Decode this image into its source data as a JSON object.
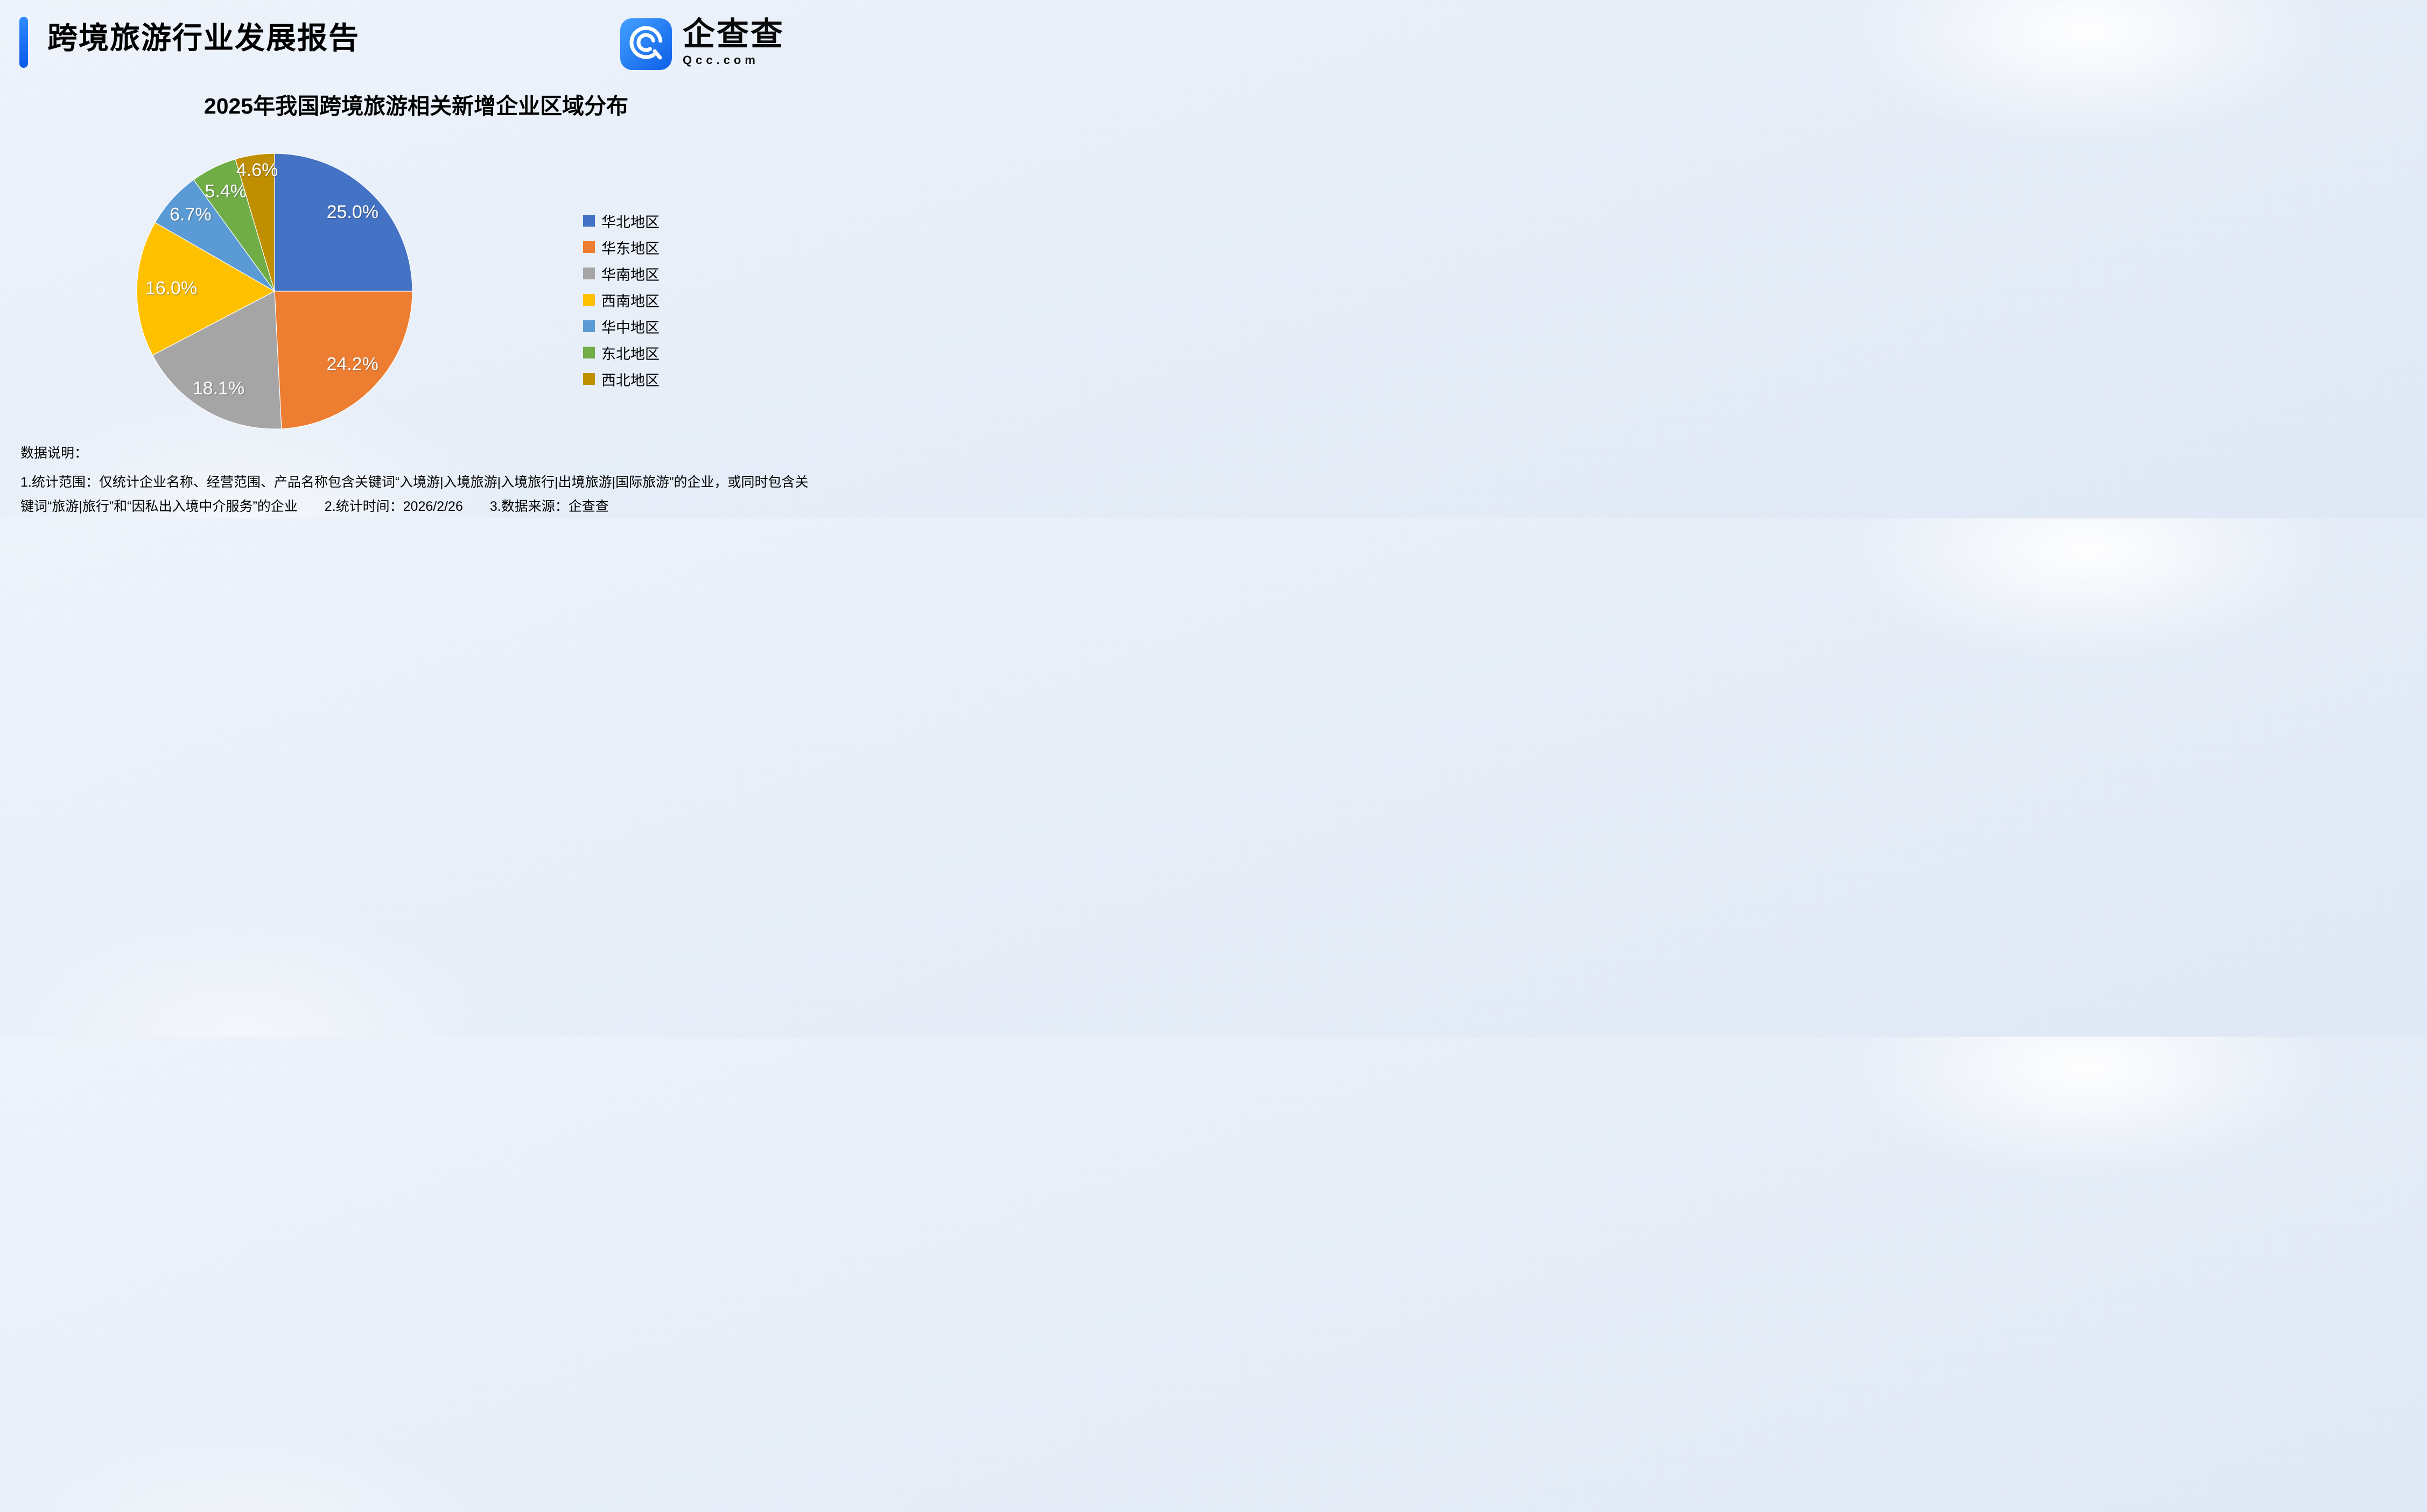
{
  "header": {
    "title": "跨境旅游行业发展报告",
    "brand": {
      "name": "企查查",
      "domain": "Qcc.com",
      "logo_color_top": "#43a0ff",
      "logo_color_bottom": "#0d5fe8"
    }
  },
  "chart_data": {
    "type": "pie",
    "title": "2025年我国跨境旅游相关新增企业区域分布",
    "unit": "%",
    "start_angle_deg": 0,
    "direction": "clockwise",
    "legend_position": "right",
    "value_label_color": "#ffffff",
    "slices": [
      {
        "label": "华北地区",
        "value": 25.0,
        "color": "#4472C4",
        "label_r": 0.8
      },
      {
        "label": "华东地区",
        "value": 24.2,
        "color": "#ED7D31",
        "label_r": 0.78
      },
      {
        "label": "华南地区",
        "value": 18.1,
        "color": "#A5A5A5",
        "label_r": 0.82
      },
      {
        "label": "西南地区",
        "value": 16.0,
        "color": "#FFC000",
        "label_r": 0.75
      },
      {
        "label": "华中地区",
        "value": 6.7,
        "color": "#5B9BD5",
        "label_r": 0.82
      },
      {
        "label": "东北地区",
        "value": 5.4,
        "color": "#70AD47",
        "label_r": 0.8
      },
      {
        "label": "西北地区",
        "value": 4.6,
        "color": "#BF8F00",
        "label_r": 0.88
      }
    ]
  },
  "footer": {
    "heading": "数据说明：",
    "note": "1.统计范围：仅统计企业名称、经营范围、产品名称包含关键词“入境游|入境旅游|入境旅行|出境旅游|国际旅游”的企业，或同时包含关键词“旅游|旅行”和“因私出入境中介服务”的企业　　2.统计时间：2026/2/26　　3.数据来源：企查查"
  }
}
